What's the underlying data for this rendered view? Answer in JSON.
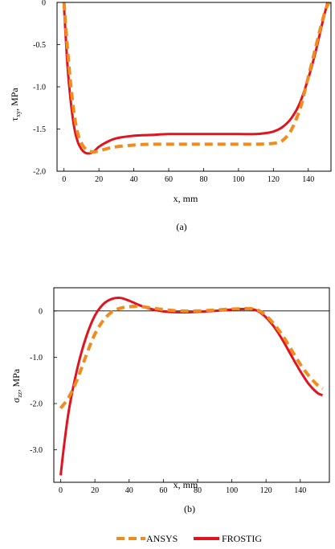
{
  "legend": {
    "entries": [
      {
        "label": "ANSYS",
        "color": "#f08c1e",
        "dash": true
      },
      {
        "label": "FROSTIG",
        "color": "#e0141e",
        "dash": false
      }
    ]
  },
  "chart_data": [
    {
      "type": "line",
      "caption": "(a)",
      "xlabel": "x, mm",
      "ylabel": "τxy, MPa",
      "ylabel_main": "τ",
      "ylabel_sub": "xy",
      "ylabel_rest": ", MPa",
      "xlim": [
        -4,
        153
      ],
      "ylim": [
        -2.0,
        0
      ],
      "xticks": [
        0,
        20,
        40,
        60,
        80,
        100,
        120,
        140
      ],
      "xtick_labels": [
        "0",
        "20",
        "40",
        "60",
        "80",
        "100",
        "120",
        "140"
      ],
      "yticks": [
        0,
        -0.5,
        -1.0,
        -1.5,
        -2.0
      ],
      "ytick_labels": [
        "0",
        "-0.5",
        "-1.0",
        "-1.5",
        "-2.0"
      ],
      "zero_line": false,
      "series": [
        {
          "name": "ANSYS",
          "color": "#f08c1e",
          "dashed": true,
          "x": [
            0,
            2,
            4,
            6,
            8,
            10,
            12,
            14,
            16,
            18,
            20,
            25,
            30,
            40,
            50,
            60,
            70,
            80,
            90,
            100,
            110,
            120,
            125,
            130,
            135,
            138,
            141,
            144,
            147,
            150,
            152
          ],
          "y": [
            0,
            -0.55,
            -1.0,
            -1.35,
            -1.56,
            -1.67,
            -1.73,
            -1.76,
            -1.77,
            -1.77,
            -1.76,
            -1.73,
            -1.71,
            -1.69,
            -1.68,
            -1.68,
            -1.68,
            -1.68,
            -1.68,
            -1.68,
            -1.68,
            -1.67,
            -1.64,
            -1.52,
            -1.28,
            -1.05,
            -0.8,
            -0.55,
            -0.3,
            -0.08,
            0
          ]
        },
        {
          "name": "FROSTIG",
          "color": "#e0141e",
          "dashed": false,
          "x": [
            0,
            2,
            4,
            6,
            8,
            10,
            12,
            14,
            16,
            18,
            20,
            25,
            30,
            40,
            50,
            60,
            70,
            80,
            90,
            100,
            110,
            115,
            120,
            125,
            130,
            135,
            140,
            144,
            148,
            151
          ],
          "y": [
            -0.05,
            -0.75,
            -1.2,
            -1.5,
            -1.66,
            -1.74,
            -1.78,
            -1.79,
            -1.78,
            -1.75,
            -1.71,
            -1.65,
            -1.61,
            -1.58,
            -1.57,
            -1.56,
            -1.56,
            -1.56,
            -1.56,
            -1.56,
            -1.56,
            -1.55,
            -1.53,
            -1.48,
            -1.38,
            -1.2,
            -0.9,
            -0.6,
            -0.25,
            0
          ]
        }
      ]
    },
    {
      "type": "line",
      "caption": "(b)",
      "xlabel": "x, mm",
      "ylabel": "σzz, MPa",
      "ylabel_main": "σ",
      "ylabel_sub": "zz",
      "ylabel_rest": ", MPa",
      "xlim": [
        -4,
        157
      ],
      "ylim": [
        -3.7,
        0.5
      ],
      "xticks": [
        0,
        20,
        40,
        60,
        80,
        100,
        120,
        140
      ],
      "xtick_labels": [
        "0",
        "20",
        "40",
        "60",
        "80",
        "100",
        "120",
        "140"
      ],
      "yticks": [
        0,
        -1.0,
        -2.0,
        -3.0
      ],
      "ytick_labels": [
        "0",
        "-1.0",
        "-2.0",
        "-3.0"
      ],
      "zero_line": true,
      "series": [
        {
          "name": "ANSYS",
          "color": "#f08c1e",
          "dashed": true,
          "x": [
            0,
            5,
            10,
            15,
            20,
            25,
            30,
            35,
            40,
            45,
            50,
            60,
            70,
            80,
            90,
            100,
            110,
            115,
            120,
            125,
            130,
            135,
            140,
            145,
            150,
            153
          ],
          "y": [
            -2.1,
            -1.85,
            -1.45,
            -0.95,
            -0.5,
            -0.2,
            -0.02,
            0.06,
            0.09,
            0.1,
            0.08,
            0.03,
            0.0,
            0.0,
            0.02,
            0.04,
            0.05,
            0.02,
            -0.1,
            -0.3,
            -0.55,
            -0.85,
            -1.15,
            -1.4,
            -1.6,
            -1.68
          ]
        },
        {
          "name": "FROSTIG",
          "color": "#e0141e",
          "dashed": false,
          "x": [
            0,
            2,
            5,
            10,
            15,
            20,
            25,
            30,
            35,
            40,
            45,
            50,
            60,
            70,
            80,
            90,
            100,
            110,
            115,
            120,
            125,
            130,
            135,
            140,
            145,
            150,
            153
          ],
          "y": [
            -3.55,
            -2.9,
            -2.1,
            -1.2,
            -0.55,
            -0.1,
            0.15,
            0.26,
            0.28,
            0.22,
            0.14,
            0.07,
            -0.01,
            -0.03,
            -0.02,
            0.0,
            0.03,
            0.04,
            0.0,
            -0.14,
            -0.36,
            -0.65,
            -0.98,
            -1.3,
            -1.58,
            -1.77,
            -1.82
          ]
        }
      ]
    }
  ]
}
